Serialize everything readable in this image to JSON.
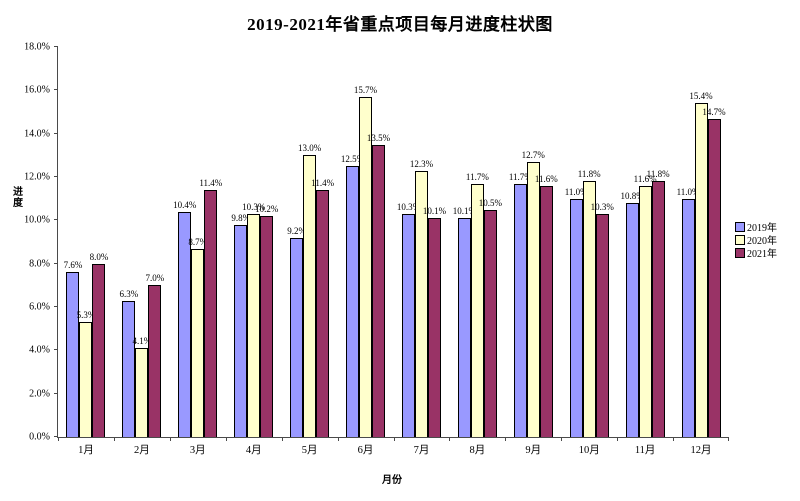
{
  "chart_title": "2019-2021年省重点项目每月进度柱状图",
  "chart_data": {
    "type": "bar",
    "title": "2019-2021年省重点项目每月进度柱状图",
    "xlabel": "月份",
    "ylabel": "进度",
    "categories": [
      "1月",
      "2月",
      "3月",
      "4月",
      "5月",
      "6月",
      "7月",
      "8月",
      "9月",
      "10月",
      "11月",
      "12月"
    ],
    "series": [
      {
        "name": "2019年",
        "color": "#9999FF",
        "values": [
          7.6,
          6.3,
          10.4,
          9.8,
          9.2,
          12.5,
          10.3,
          10.1,
          11.7,
          11.0,
          10.8,
          11.0
        ]
      },
      {
        "name": "2020年",
        "color": "#FFFFCC",
        "values": [
          5.3,
          4.1,
          8.7,
          10.3,
          13.0,
          15.7,
          12.3,
          11.7,
          12.7,
          11.8,
          11.6,
          15.4
        ]
      },
      {
        "name": "2021年",
        "color": "#993366",
        "values": [
          8.0,
          7.0,
          11.4,
          10.2,
          11.4,
          13.5,
          10.1,
          10.5,
          11.6,
          10.3,
          11.8,
          14.7
        ]
      }
    ],
    "value_label_suffix": "%",
    "ylim": [
      0,
      18
    ],
    "ytick_step": 2,
    "yticks": [
      "0.0%",
      "2.0%",
      "4.0%",
      "6.0%",
      "8.0%",
      "10.0%",
      "12.0%",
      "14.0%",
      "16.0%",
      "18.0%"
    ],
    "grid": false,
    "data_labels": true,
    "legend_position": "right",
    "bar_outline_color": "#000000",
    "axis_color": "#4a4a4a"
  }
}
